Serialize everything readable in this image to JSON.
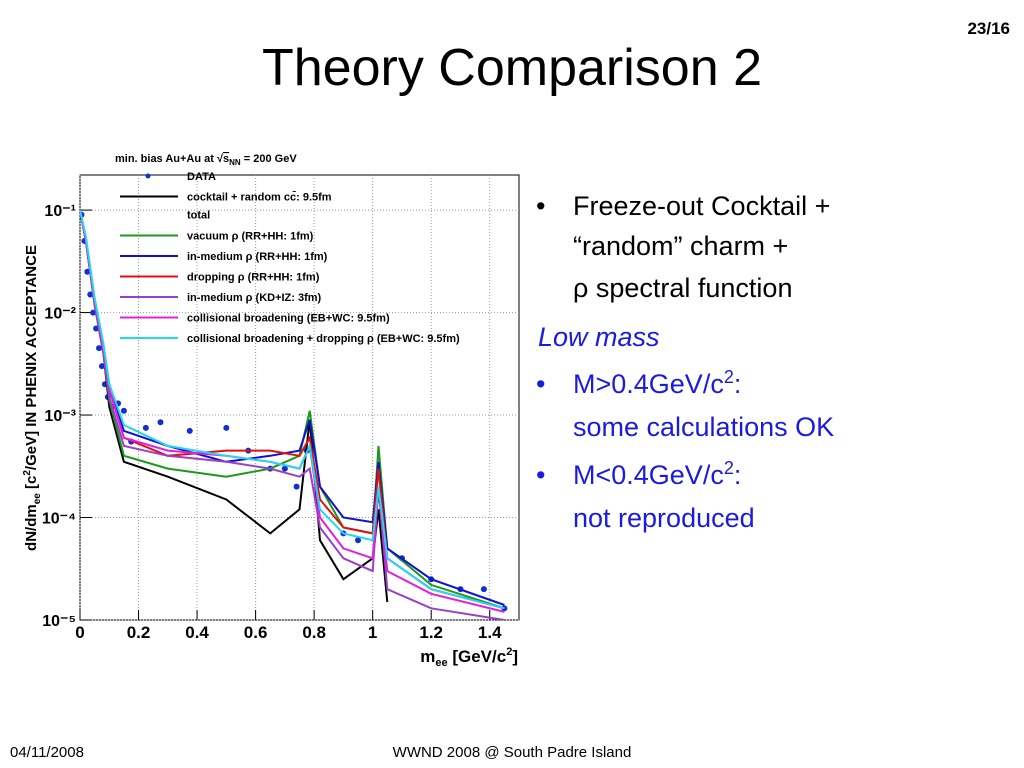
{
  "slide": {
    "title": "Theory Comparison 2",
    "page_number": "23/16",
    "bullets": [
      {
        "lines": [
          [
            "Freeze-out Cocktail +"
          ],
          [
            "“random” charm +"
          ],
          [
            "ρ spectral function"
          ]
        ]
      },
      {
        "heading": "Low mass"
      },
      {
        "lines": [
          [
            "M>0.4GeV/c",
            "2",
            ":"
          ],
          [
            "some calculations OK"
          ]
        ]
      },
      {
        "lines": [
          [
            "M<0.4GeV/c",
            "2",
            ":"
          ],
          [
            "not reproduced"
          ]
        ]
      }
    ],
    "footer_left": "04/11/2008",
    "footer_center": "WWND 2008 @ South Padre Island"
  },
  "chart_data": {
    "type": "line",
    "legend_title": [
      "min. bias Au+Au at ",
      "√",
      "s",
      "NN",
      " = 200 GeV"
    ],
    "legend_note": "total",
    "x_label": [
      "m",
      "ee",
      " [GeV/c",
      "2",
      "]"
    ],
    "y_label": [
      "dN/dm",
      "ee",
      " [c",
      "2",
      "/GeV] IN PHENIX ACCEPTANCE"
    ],
    "log_y": true,
    "grid": true,
    "xlim": [
      0,
      1.5
    ],
    "ylim": [
      1e-05,
      0.22
    ],
    "xticks": [
      0,
      0.2,
      0.4,
      0.6,
      0.8,
      1,
      1.2,
      1.4
    ],
    "yticks": [
      {
        "value": 1e-05,
        "label": "10⁻⁵"
      },
      {
        "value": 0.0001,
        "label": "10⁻⁴"
      },
      {
        "value": 0.001,
        "label": "10⁻³"
      },
      {
        "value": 0.01,
        "label": "10⁻²"
      },
      {
        "value": 0.1,
        "label": "10⁻¹"
      }
    ],
    "x": [
      0,
      0.02,
      0.05,
      0.08,
      0.1,
      0.15,
      0.3,
      0.5,
      0.65,
      0.75,
      0.785,
      0.82,
      0.9,
      1.0,
      1.02,
      1.05,
      1.2,
      1.45
    ],
    "series": [
      {
        "name": "DATA",
        "color": "#1030d0",
        "marker": true,
        "x": [
          0.005,
          0.015,
          0.025,
          0.035,
          0.045,
          0.055,
          0.065,
          0.075,
          0.085,
          0.095,
          0.11,
          0.13,
          0.15,
          0.175,
          0.225,
          0.275,
          0.375,
          0.5,
          0.575,
          0.65,
          0.7,
          0.74,
          0.775,
          0.9,
          0.95,
          1.02,
          1.1,
          1.2,
          1.3,
          1.38,
          1.45
        ],
        "values": [
          0.09,
          0.05,
          0.025,
          0.015,
          0.01,
          0.007,
          0.0045,
          0.003,
          0.002,
          0.0015,
          0.0012,
          0.0013,
          0.0011,
          0.00055,
          0.00075,
          0.00085,
          0.0007,
          0.00075,
          0.00045,
          0.0003,
          0.0003,
          0.0002,
          0.00045,
          7e-05,
          6e-05,
          0.00015,
          4e-05,
          2.5e-05,
          2e-05,
          2e-05,
          1.3e-05
        ]
      },
      {
        "name": "cocktail + random cc̄: 9.5fm",
        "color": "#000000",
        "values": [
          0.1,
          0.05,
          0.012,
          0.004,
          0.0012,
          0.00035,
          0.00025,
          0.00015,
          7e-05,
          0.00012,
          0.0009,
          6e-05,
          2.5e-05,
          4e-05,
          0.00012,
          1.5e-05,
          null,
          null
        ]
      },
      {
        "name": "vacuum ρ (RR+HH: 1fm)",
        "color": "#1a9a1a",
        "values": [
          0.1,
          0.05,
          0.012,
          0.004,
          0.0014,
          0.0004,
          0.0003,
          0.00025,
          0.0003,
          0.0004,
          0.0011,
          0.0002,
          8e-05,
          7e-05,
          0.0005,
          5e-05,
          2.2e-05,
          1.3e-05
        ]
      },
      {
        "name": "in-medium ρ (RR+HH: 1fm)",
        "color": "#1010d0",
        "values": [
          0.1,
          0.05,
          0.013,
          0.0045,
          0.002,
          0.0007,
          0.0005,
          0.00035,
          0.0004,
          0.00045,
          0.0009,
          0.0002,
          0.0001,
          9e-05,
          0.00035,
          5e-05,
          2.5e-05,
          1.4e-05
        ]
      },
      {
        "name": "dropping ρ (RR+HH: 1fm)",
        "color": "#e01010",
        "values": [
          0.1,
          0.05,
          0.013,
          0.0045,
          0.0018,
          0.0006,
          0.0004,
          0.00045,
          0.00045,
          0.0004,
          0.0006,
          0.00015,
          8e-05,
          7e-05,
          0.0003,
          4e-05,
          2e-05,
          1.3e-05
        ]
      },
      {
        "name": "in-medium ρ (KD+IZ: 3fm)",
        "color": "#9a40c8",
        "values": [
          0.1,
          0.05,
          0.012,
          0.004,
          0.0015,
          0.0005,
          0.0004,
          0.00035,
          0.0003,
          0.00025,
          0.0003,
          8e-05,
          4e-05,
          3e-05,
          0.0002,
          2e-05,
          1.3e-05,
          1e-05
        ]
      },
      {
        "name": "collisional broadening (EB+WC: 9.5fm)",
        "color": "#e020e0",
        "values": [
          0.1,
          0.05,
          0.013,
          0.0045,
          0.0018,
          0.0006,
          0.00045,
          0.0004,
          0.00035,
          0.0003,
          0.0005,
          0.0001,
          5e-05,
          4e-05,
          0.0002,
          3e-05,
          1.8e-05,
          1.2e-05
        ]
      },
      {
        "name": "collisional broadening + dropping ρ (EB+WC: 9.5fm)",
        "color": "#20d8f0",
        "values": [
          0.1,
          0.055,
          0.014,
          0.005,
          0.002,
          0.0008,
          0.0005,
          0.0004,
          0.00035,
          0.0003,
          0.0005,
          0.00012,
          7e-05,
          6e-05,
          0.0002,
          4e-05,
          2e-05,
          1.3e-05
        ]
      }
    ]
  }
}
